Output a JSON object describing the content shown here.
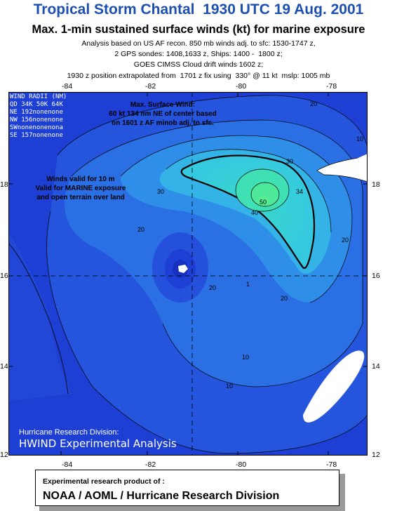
{
  "header": {
    "title": "Tropical Storm Chantal  1930 UTC 19 Aug. 2001",
    "subtitle": "Max. 1-min sustained surface winds (kt) for marine exposure",
    "info_lines": [
      "Analysis based on US AF recon. 850 mb winds adj. to sfc: 1530-1747 z,",
      "2 GPS sondes: 1408,1633 z, Ships: 1400 -  1800 z;",
      "GOES CIMSS Cloud drift winds 1602 z;",
      "1930 z position extrapolated from  1701 z fix using  330° @ 11 kt  mslp: 1005 mb"
    ]
  },
  "map": {
    "x_ticks": [
      "-84",
      "-82",
      "-80",
      "-78"
    ],
    "y_ticks": [
      "18",
      "16",
      "14",
      "12"
    ],
    "wind_radii": {
      "title": "WIND RADII (NM)",
      "header": "QD  34K  50K  64K",
      "rows": [
        "NE  192nonenone",
        "NW  156nonenone",
        "SWnonenonenona",
        "SE  157nonenone"
      ]
    },
    "max_wind": {
      "line1": "Max. Surface Wind:",
      "line2": "60 kt 134 nm NE of  center based",
      "line3": "on 1601 z AF minob adj. to sfc."
    },
    "valid": {
      "line1": "Winds valid for 10 m",
      "line2": "Valid for MARINE exposure",
      "line3": "and open terrain over land"
    },
    "contour_labels": [
      "10",
      "20",
      "30",
      "34",
      "40",
      "50",
      "20",
      "30",
      "20",
      "20",
      "10",
      "20",
      "10",
      "1"
    ],
    "credit": {
      "line1": "Hurricane Research Division:",
      "line2": "HWIND Experimental Analysis"
    },
    "colors": {
      "low": "#1e3fd4",
      "mid": "#2f7ee8",
      "high": "#35c9e0",
      "peak": "#45e6a8",
      "land": "#ffffff"
    }
  },
  "footer": {
    "label": "Experimental research product of :",
    "org": "NOAA / AOML / Hurricane Research Division"
  }
}
